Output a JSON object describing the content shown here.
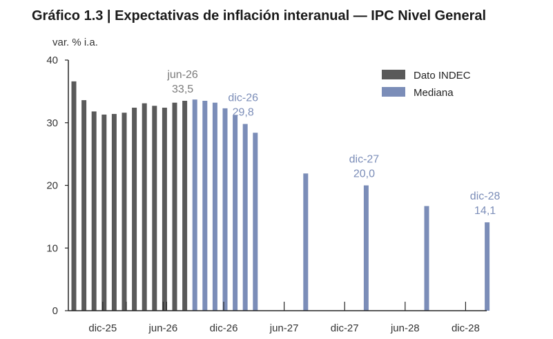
{
  "chart_data": {
    "type": "bar",
    "title": "Gráfico 1.3 | Expectativas de inflación interanual — IPC Nivel General",
    "ylabel": "var. % i.a.",
    "ylim": [
      0,
      40
    ],
    "yticks": [
      "0",
      "10",
      "20",
      "30",
      "40"
    ],
    "xticks": [
      {
        "label": "dic-25",
        "month": 3
      },
      {
        "label": "jun-26",
        "month": 9
      },
      {
        "label": "dic-26",
        "month": 15
      },
      {
        "label": "jun-27",
        "month": 21
      },
      {
        "label": "dic-27",
        "month": 27
      },
      {
        "label": "jun-28",
        "month": 33
      },
      {
        "label": "dic-28",
        "month": 39
      }
    ],
    "gray_separators_months": [
      5,
      9
    ],
    "series": [
      {
        "name": "Dato INDEC",
        "color": "#5a5a5a",
        "points": [
          {
            "month": 0,
            "value": 36.6
          },
          {
            "month": 1,
            "value": 33.6
          },
          {
            "month": 2,
            "value": 31.8
          },
          {
            "month": 3,
            "value": 31.3
          },
          {
            "month": 4,
            "value": 31.4
          },
          {
            "month": 5,
            "value": 31.6
          },
          {
            "month": 6,
            "value": 32.4
          },
          {
            "month": 7,
            "value": 33.1
          },
          {
            "month": 8,
            "value": 32.7
          },
          {
            "month": 9,
            "value": 32.4
          },
          {
            "month": 10,
            "value": 33.2
          },
          {
            "month": 11,
            "value": 33.5
          }
        ]
      },
      {
        "name": "Mediana",
        "color": "#7b8db8",
        "points": [
          {
            "month": 12,
            "value": 33.7
          },
          {
            "month": 13,
            "value": 33.5
          },
          {
            "month": 14,
            "value": 33.2
          },
          {
            "month": 15,
            "value": 32.3
          },
          {
            "month": 16,
            "value": 31.2
          },
          {
            "month": 17,
            "value": 29.8
          },
          {
            "month": 18,
            "value": 28.4
          },
          {
            "month": 23,
            "value": 21.9
          },
          {
            "month": 29,
            "value": 20.0
          },
          {
            "month": 35,
            "value": 16.7
          },
          {
            "month": 41,
            "value": 14.1
          }
        ]
      }
    ],
    "annotations": [
      {
        "label": "jun-26",
        "value_text": "33,5",
        "month": 11,
        "color": "#7a7a7a"
      },
      {
        "label": "dic-26",
        "value_text": "29,8",
        "month": 17,
        "color": "#7b8db8"
      },
      {
        "label": "dic-27",
        "value_text": "20,0",
        "month": 29,
        "color": "#7b8db8"
      },
      {
        "label": "dic-28",
        "value_text": "14,1",
        "month": 41,
        "color": "#7b8db8"
      }
    ],
    "legend": {
      "position": "top-right",
      "entries": [
        "Dato INDEC",
        "Mediana"
      ]
    },
    "grid": false
  }
}
